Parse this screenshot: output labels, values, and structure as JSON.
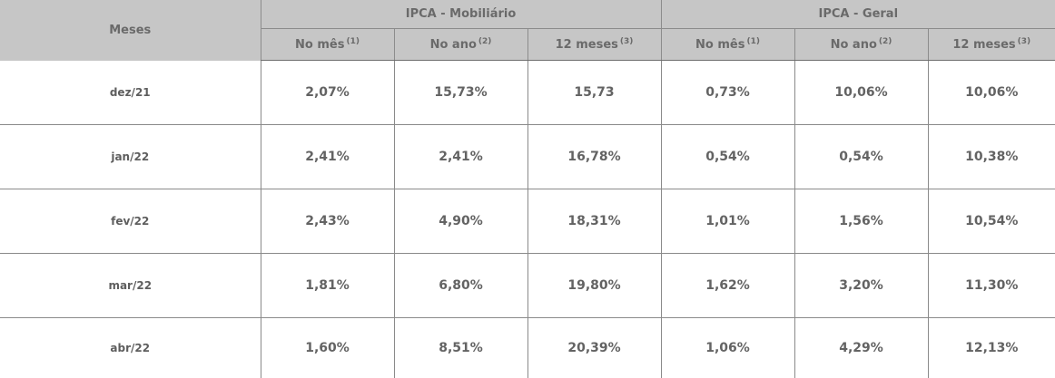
{
  "header": {
    "months_label": "Meses",
    "group_mobiliario": "IPCA - Mobiliário",
    "group_geral": "IPCA - Geral",
    "sub_columns": [
      {
        "label": "No mês",
        "note": "(1)"
      },
      {
        "label": "No ano",
        "note": "(2)"
      },
      {
        "label": "12 meses",
        "note": "(3)"
      }
    ]
  },
  "rows": [
    {
      "month": "dez/21",
      "mob_mes": "2,07%",
      "mob_ano": "15,73%",
      "mob_12": "15,73",
      "ger_mes": "0,73%",
      "ger_ano": "10,06%",
      "ger_12": "10,06%"
    },
    {
      "month": "jan/22",
      "mob_mes": "2,41%",
      "mob_ano": "2,41%",
      "mob_12": "16,78%",
      "ger_mes": "0,54%",
      "ger_ano": "0,54%",
      "ger_12": "10,38%"
    },
    {
      "month": "fev/22",
      "mob_mes": "2,43%",
      "mob_ano": "4,90%",
      "mob_12": "18,31%",
      "ger_mes": "1,01%",
      "ger_ano": "1,56%",
      "ger_12": "10,54%"
    },
    {
      "month": "mar/22",
      "mob_mes": "1,81%",
      "mob_ano": "6,80%",
      "mob_12": "19,80%",
      "ger_mes": "1,62%",
      "ger_ano": "3,20%",
      "ger_12": "11,30%"
    },
    {
      "month": "abr/22",
      "mob_mes": "1,60%",
      "mob_ano": "8,51%",
      "mob_12": "20,39%",
      "ger_mes": "1,06%",
      "ger_ano": "4,29%",
      "ger_12": "12,13%"
    }
  ]
}
